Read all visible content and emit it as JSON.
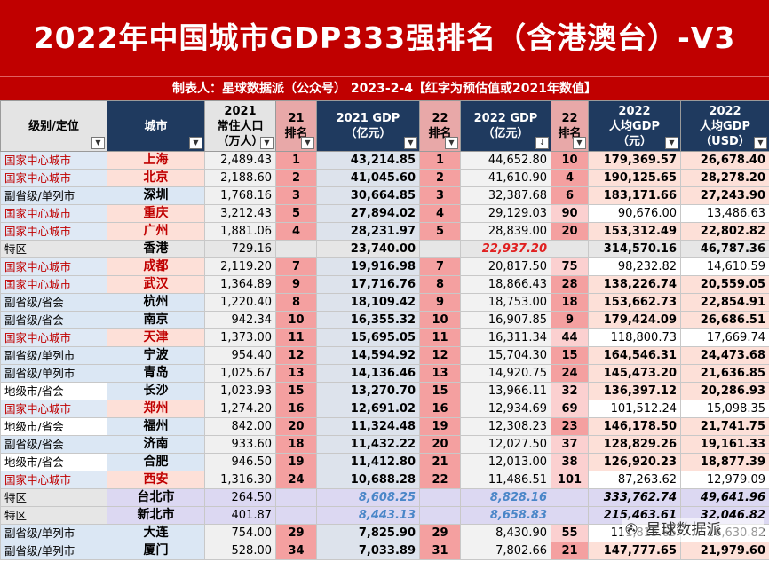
{
  "title": "2022年中国城市GDP333强排名（含港澳台）-V3",
  "subtitle": "制表人：星球数据派（公众号） 2023-2-4【红字为预估值或2021年数值】",
  "columns": {
    "level": "级别/定位",
    "city": "城市",
    "pop": [
      "2021",
      "常住人口",
      "（万人）"
    ],
    "rank21": [
      "21",
      "排名"
    ],
    "gdp21": [
      "2021 GDP",
      "（亿元）"
    ],
    "rank22": [
      "22",
      "排名"
    ],
    "gdp22": [
      "2022 GDP",
      "（亿元）"
    ],
    "pcrank": [
      "22",
      "排名"
    ],
    "pc_cny": [
      "2022",
      "人均GDP",
      "（元）"
    ],
    "pc_usd": [
      "2022",
      "人均GDP",
      "（USD）"
    ]
  },
  "rows": [
    {
      "level": "国家中心城市",
      "city": "上海",
      "pop": "2,489.43",
      "rank21": "1",
      "gdp21": "43,214.85",
      "rank22": "1",
      "gdp22": "44,652.80",
      "pcrank": "10",
      "pc_cny": "179,369.57",
      "pc_usd": "26,678.40"
    },
    {
      "level": "国家中心城市",
      "city": "北京",
      "pop": "2,188.60",
      "rank21": "2",
      "gdp21": "41,045.60",
      "rank22": "2",
      "gdp22": "41,610.90",
      "pcrank": "4",
      "pc_cny": "190,125.65",
      "pc_usd": "28,278.20"
    },
    {
      "level": "副省级/单列市",
      "city": "深圳",
      "pop": "1,768.16",
      "rank21": "3",
      "gdp21": "30,664.85",
      "rank22": "3",
      "gdp22": "32,387.68",
      "pcrank": "6",
      "pc_cny": "183,171.66",
      "pc_usd": "27,243.90"
    },
    {
      "level": "国家中心城市",
      "city": "重庆",
      "pop": "3,212.43",
      "rank21": "5",
      "gdp21": "27,894.02",
      "rank22": "4",
      "gdp22": "29,129.03",
      "pcrank": "90",
      "pc_cny": "90,676.00",
      "pc_usd": "13,486.63"
    },
    {
      "level": "国家中心城市",
      "city": "广州",
      "pop": "1,881.06",
      "rank21": "4",
      "gdp21": "28,231.97",
      "rank22": "5",
      "gdp22": "28,839.00",
      "pcrank": "20",
      "pc_cny": "153,312.49",
      "pc_usd": "22,802.82"
    },
    {
      "level": "特区",
      "city": "香港",
      "pop": "729.16",
      "rank21": "",
      "gdp21": "23,740.00",
      "rank22": "",
      "gdp22": "22,937.20",
      "pcrank": "",
      "pc_cny": "314,570.16",
      "pc_usd": "46,787.36"
    },
    {
      "level": "国家中心城市",
      "city": "成都",
      "pop": "2,119.20",
      "rank21": "7",
      "gdp21": "19,916.98",
      "rank22": "7",
      "gdp22": "20,817.50",
      "pcrank": "75",
      "pc_cny": "98,232.82",
      "pc_usd": "14,610.59"
    },
    {
      "level": "国家中心城市",
      "city": "武汉",
      "pop": "1,364.89",
      "rank21": "9",
      "gdp21": "17,716.76",
      "rank22": "8",
      "gdp22": "18,866.43",
      "pcrank": "28",
      "pc_cny": "138,226.74",
      "pc_usd": "20,559.05"
    },
    {
      "level": "副省级/省会",
      "city": "杭州",
      "pop": "1,220.40",
      "rank21": "8",
      "gdp21": "18,109.42",
      "rank22": "9",
      "gdp22": "18,753.00",
      "pcrank": "18",
      "pc_cny": "153,662.73",
      "pc_usd": "22,854.91"
    },
    {
      "level": "副省级/省会",
      "city": "南京",
      "pop": "942.34",
      "rank21": "10",
      "gdp21": "16,355.32",
      "rank22": "10",
      "gdp22": "16,907.85",
      "pcrank": "9",
      "pc_cny": "179,424.09",
      "pc_usd": "26,686.51"
    },
    {
      "level": "国家中心城市",
      "city": "天津",
      "pop": "1,373.00",
      "rank21": "11",
      "gdp21": "15,695.05",
      "rank22": "11",
      "gdp22": "16,311.34",
      "pcrank": "44",
      "pc_cny": "118,800.73",
      "pc_usd": "17,669.74"
    },
    {
      "level": "副省级/单列市",
      "city": "宁波",
      "pop": "954.40",
      "rank21": "12",
      "gdp21": "14,594.92",
      "rank22": "12",
      "gdp22": "15,704.30",
      "pcrank": "15",
      "pc_cny": "164,546.31",
      "pc_usd": "24,473.68"
    },
    {
      "level": "副省级/单列市",
      "city": "青岛",
      "pop": "1,025.67",
      "rank21": "13",
      "gdp21": "14,136.46",
      "rank22": "13",
      "gdp22": "14,920.75",
      "pcrank": "24",
      "pc_cny": "145,473.20",
      "pc_usd": "21,636.85"
    },
    {
      "level": "地级市/省会",
      "city": "长沙",
      "pop": "1,023.93",
      "rank21": "15",
      "gdp21": "13,270.70",
      "rank22": "15",
      "gdp22": "13,966.11",
      "pcrank": "32",
      "pc_cny": "136,397.12",
      "pc_usd": "20,286.93"
    },
    {
      "level": "国家中心城市",
      "city": "郑州",
      "pop": "1,274.20",
      "rank21": "16",
      "gdp21": "12,691.02",
      "rank22": "16",
      "gdp22": "12,934.69",
      "pcrank": "69",
      "pc_cny": "101,512.24",
      "pc_usd": "15,098.35"
    },
    {
      "level": "地级市/省会",
      "city": "福州",
      "pop": "842.00",
      "rank21": "20",
      "gdp21": "11,324.48",
      "rank22": "19",
      "gdp22": "12,308.23",
      "pcrank": "23",
      "pc_cny": "146,178.50",
      "pc_usd": "21,741.75"
    },
    {
      "level": "副省级/省会",
      "city": "济南",
      "pop": "933.60",
      "rank21": "18",
      "gdp21": "11,432.22",
      "rank22": "20",
      "gdp22": "12,027.50",
      "pcrank": "37",
      "pc_cny": "128,829.26",
      "pc_usd": "19,161.33"
    },
    {
      "level": "地级市/省会",
      "city": "合肥",
      "pop": "946.50",
      "rank21": "19",
      "gdp21": "11,412.80",
      "rank22": "21",
      "gdp22": "12,013.00",
      "pcrank": "38",
      "pc_cny": "126,920.23",
      "pc_usd": "18,877.39"
    },
    {
      "level": "国家中心城市",
      "city": "西安",
      "pop": "1,316.30",
      "rank21": "24",
      "gdp21": "10,688.28",
      "rank22": "22",
      "gdp22": "11,486.51",
      "pcrank": "101",
      "pc_cny": "87,263.62",
      "pc_usd": "12,979.09"
    },
    {
      "level": "特区",
      "city": "台北市",
      "pop": "264.50",
      "rank21": "",
      "gdp21": "8,608.25",
      "rank22": "",
      "gdp22": "8,828.16",
      "pcrank": "",
      "pc_cny": "333,762.74",
      "pc_usd": "49,641.96"
    },
    {
      "level": "特区",
      "city": "新北市",
      "pop": "401.87",
      "rank21": "",
      "gdp21": "8,443.13",
      "rank22": "",
      "gdp22": "8,658.83",
      "pcrank": "",
      "pc_cny": "215,463.61",
      "pc_usd": "32,046.82"
    },
    {
      "level": "副省级/单列市",
      "city": "大连",
      "pop": "754.00",
      "rank21": "29",
      "gdp21": "7,825.90",
      "rank22": "29",
      "gdp22": "8,430.90",
      "pcrank": "55",
      "pc_cny": "111,815.65",
      "pc_usd": "16,630.82"
    },
    {
      "level": "副省级/单列市",
      "city": "厦门",
      "pop": "528.00",
      "rank21": "34",
      "gdp21": "7,033.89",
      "rank22": "31",
      "gdp22": "7,802.66",
      "pcrank": "21",
      "pc_cny": "147,777.65",
      "pc_usd": "21,979.60"
    }
  ],
  "watermark": "星球数据派",
  "colors": {
    "title_bg": "#c00000",
    "header_dark": "#1f3a5f",
    "rank_pink": "#f4a0a0",
    "estimate_red": "#e02020",
    "taiwan_blue": "#4a86c8",
    "national_center_text": "#c00000",
    "special_zone_bg": "#e6e6e6",
    "taiwan_bg": "#dcd8f2"
  }
}
